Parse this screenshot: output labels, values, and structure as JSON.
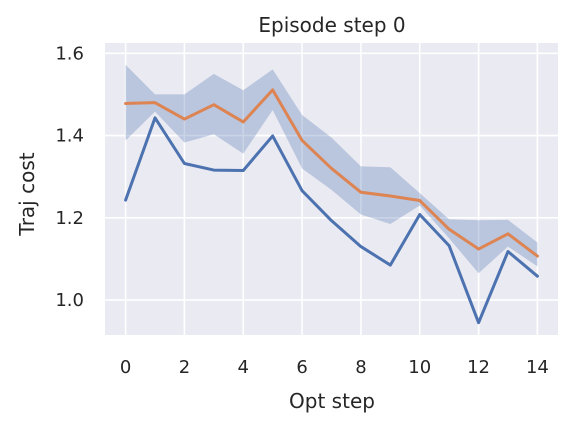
{
  "chart_data": {
    "type": "line",
    "title": "Episode step 0",
    "xlabel": "Opt step",
    "ylabel": "Traj cost",
    "xlim": [
      -0.7,
      14.7
    ],
    "ylim": [
      0.915,
      1.625
    ],
    "x_ticks": [
      0,
      2,
      4,
      6,
      8,
      10,
      12,
      14
    ],
    "x_tick_labels": [
      "0",
      "2",
      "4",
      "6",
      "8",
      "10",
      "12",
      "14"
    ],
    "y_ticks": [
      1.0,
      1.2,
      1.4,
      1.6
    ],
    "y_tick_labels": [
      "1.0",
      "1.2",
      "1.4",
      "1.6"
    ],
    "grid": true,
    "x": [
      0,
      1,
      2,
      3,
      4,
      5,
      6,
      7,
      8,
      9,
      10,
      11,
      12,
      13,
      14
    ],
    "series": [
      {
        "color": "#4c72b0",
        "values": [
          1.243,
          1.443,
          1.332,
          1.316,
          1.315,
          1.399,
          1.266,
          1.193,
          1.13,
          1.085,
          1.208,
          1.132,
          0.945,
          1.118,
          1.058
        ]
      },
      {
        "color": "#dd8452",
        "values": [
          1.478,
          1.48,
          1.44,
          1.475,
          1.433,
          1.511,
          1.388,
          1.32,
          1.262,
          1.253,
          1.242,
          1.172,
          1.124,
          1.161,
          1.107
        ]
      }
    ],
    "band": {
      "color": "#4c72b0",
      "lower": [
        1.388,
        1.458,
        1.383,
        1.403,
        1.356,
        1.462,
        1.32,
        1.268,
        1.208,
        1.185,
        1.23,
        1.15,
        1.065,
        1.13,
        1.082
      ],
      "upper": [
        1.572,
        1.5,
        1.5,
        1.55,
        1.51,
        1.561,
        1.45,
        1.395,
        1.325,
        1.323,
        1.26,
        1.196,
        1.194,
        1.195,
        1.14
      ]
    }
  }
}
